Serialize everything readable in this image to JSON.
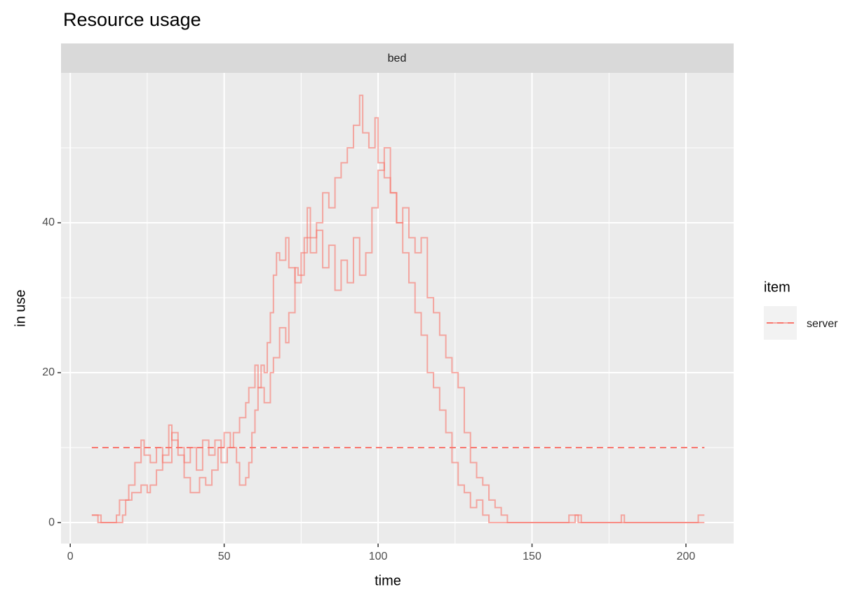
{
  "chart_data": {
    "type": "step",
    "title": "Resource usage",
    "facet": "bed",
    "xlabel": "time",
    "ylabel": "in use",
    "xlim": [
      -3,
      215.5
    ],
    "ylim": [
      -2.8,
      60
    ],
    "xticks": [
      0,
      50,
      100,
      150,
      200
    ],
    "yticks": [
      0,
      20,
      40
    ],
    "xminor": [
      25,
      75,
      125,
      175
    ],
    "yminor": [
      10,
      30,
      50
    ],
    "grid": true,
    "legend": {
      "title": "item",
      "entries": [
        "server"
      ],
      "position": "right"
    },
    "color": "#F8766D",
    "series": [
      {
        "x": [
          7,
          9,
          17,
          18,
          20,
          23,
          25,
          26,
          28,
          30,
          32,
          33,
          35,
          37,
          39,
          42,
          44,
          46,
          48,
          50,
          52,
          54,
          55,
          57,
          58,
          59,
          60,
          61,
          62,
          63,
          64,
          65,
          66,
          67,
          68,
          70,
          71,
          73,
          75,
          77,
          78,
          80,
          82,
          84,
          86,
          88,
          90,
          92,
          94,
          95,
          97,
          99,
          100,
          102,
          104,
          106,
          108,
          110,
          112,
          114,
          116,
          118,
          120,
          122,
          124,
          126,
          128,
          130,
          132,
          134,
          136,
          162,
          165,
          179,
          180,
          204,
          206
        ],
        "values": [
          1,
          0,
          1,
          3,
          4,
          5,
          4,
          5,
          7,
          9,
          13,
          11,
          9,
          6,
          4,
          6,
          5,
          7,
          10,
          12,
          10,
          8,
          5,
          6,
          8,
          12,
          15,
          18,
          21,
          20,
          24,
          28,
          33,
          36,
          35,
          38,
          34,
          32,
          36,
          42,
          38,
          40,
          44,
          42,
          46,
          48,
          50,
          53,
          57,
          52,
          50,
          54,
          48,
          46,
          44,
          40,
          36,
          32,
          28,
          25,
          20,
          18,
          15,
          12,
          8,
          5,
          4,
          2,
          3,
          1,
          0,
          1,
          0,
          1,
          0,
          1,
          1
        ]
      },
      {
        "x": [
          7,
          10,
          15,
          16,
          19,
          21,
          23,
          24,
          26,
          28,
          30,
          33,
          35,
          37,
          39,
          41,
          43,
          45,
          47,
          49,
          51,
          53,
          55,
          57,
          58,
          60,
          61,
          63,
          65,
          66,
          68,
          70,
          71,
          73,
          74,
          76,
          78,
          80,
          82,
          84,
          86,
          88,
          90,
          92,
          94,
          96,
          98,
          100,
          102,
          104,
          106,
          108,
          110,
          112,
          114,
          116,
          118,
          120,
          122,
          124,
          126,
          128,
          130,
          132,
          134,
          136,
          138,
          140,
          142,
          164,
          166,
          206
        ],
        "values": [
          1,
          0,
          1,
          3,
          5,
          8,
          11,
          9,
          8,
          10,
          8,
          12,
          10,
          8,
          10,
          7,
          11,
          9,
          11,
          8,
          10,
          12,
          14,
          16,
          18,
          21,
          18,
          16,
          20,
          22,
          26,
          24,
          28,
          34,
          33,
          38,
          36,
          39,
          34,
          37,
          31,
          35,
          32,
          38,
          33,
          36,
          42,
          47,
          50,
          44,
          40,
          42,
          38,
          36,
          38,
          30,
          28,
          25,
          22,
          20,
          18,
          12,
          8,
          6,
          5,
          3,
          2,
          1,
          0,
          1,
          0,
          0
        ]
      }
    ],
    "capacity": {
      "x": [
        7,
        206
      ],
      "values": [
        10,
        10
      ]
    }
  }
}
